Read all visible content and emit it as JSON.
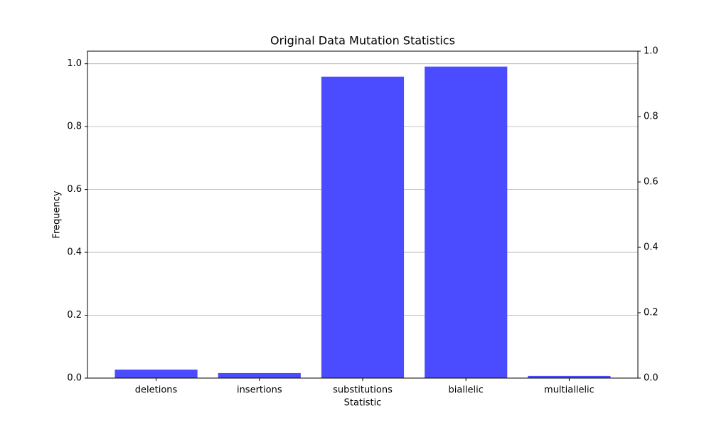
{
  "chart_data": {
    "type": "bar",
    "title": "Original Data Mutation Statistics",
    "x_label": "Statistic",
    "y_label": "Frequency",
    "categories": [
      "deletions",
      "insertions",
      "substitutions",
      "biallelic",
      "multiallelic"
    ],
    "values": [
      0.027,
      0.016,
      0.959,
      0.991,
      0.007
    ],
    "color": "#4b4bff",
    "ylim": [
      0,
      1.04
    ],
    "yticks": [
      {
        "value": 0,
        "label": "0.0"
      },
      0.2,
      0.4,
      0.6,
      0.8,
      {
        "value": 1,
        "label": "1.0"
      }
    ],
    "y2lim": [
      0,
      1
    ],
    "y2ticks": [
      {
        "value": 0,
        "label": "0.0"
      },
      0.2,
      0.4,
      0.6,
      0.8,
      {
        "value": 1,
        "label": "1.0"
      }
    ],
    "grid": true
  }
}
